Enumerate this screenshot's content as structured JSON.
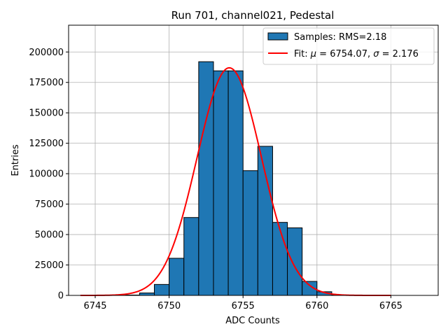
{
  "chart_data": {
    "type": "bar",
    "title": "Run 701, channel021, Pedestal",
    "xlabel": "ADC Counts",
    "ylabel": "Entries",
    "xlim": [
      6743.2,
      6768.2
    ],
    "ylim": [
      0,
      222000
    ],
    "xticks": [
      6745,
      6750,
      6755,
      6760,
      6765
    ],
    "yticks": [
      0,
      25000,
      50000,
      75000,
      100000,
      125000,
      150000,
      175000,
      200000
    ],
    "grid": true,
    "legend_position": "top-right",
    "histogram": {
      "name": "Samples: RMS=2.18",
      "color": "#1f77b4",
      "bin_width": 1,
      "bins": [
        {
          "x0": 6747,
          "value": 300
        },
        {
          "x0": 6748,
          "value": 2000
        },
        {
          "x0": 6749,
          "value": 9000
        },
        {
          "x0": 6750,
          "value": 30500
        },
        {
          "x0": 6751,
          "value": 64000
        },
        {
          "x0": 6752,
          "value": 192000
        },
        {
          "x0": 6753,
          "value": 184500
        },
        {
          "x0": 6754,
          "value": 184500
        },
        {
          "x0": 6755,
          "value": 102500
        },
        {
          "x0": 6756,
          "value": 122500
        },
        {
          "x0": 6757,
          "value": 60000
        },
        {
          "x0": 6758,
          "value": 55500
        },
        {
          "x0": 6759,
          "value": 11500
        },
        {
          "x0": 6760,
          "value": 3000
        },
        {
          "x0": 6761,
          "value": 400
        }
      ]
    },
    "fit": {
      "name": "Fit: μ = 6754.07, σ = 2.176",
      "legend_prefix": "Fit: ",
      "legend_mu": "μ",
      "legend_mid": " = 6754.07, ",
      "legend_sigma": "σ",
      "legend_suffix": " = 2.176",
      "color": "#ff0000",
      "mu": 6754.07,
      "sigma": 2.176,
      "amplitude": 187000,
      "x_range": [
        6744,
        6765
      ]
    }
  }
}
